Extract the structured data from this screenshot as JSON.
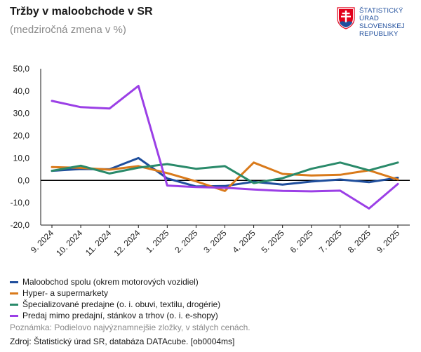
{
  "header": {
    "title": "Tržby v maloobchode v SR",
    "subtitle": "(medziročná zmena v %)"
  },
  "logo": {
    "lines": [
      "ŠTATISTICKÝ",
      "ÚRAD",
      "SLOVENSKEJ",
      "REPUBLIKY"
    ],
    "colors": {
      "red": "#e2001a",
      "blue": "#1f4e9c",
      "white": "#ffffff"
    }
  },
  "chart_data": {
    "type": "line",
    "title": "Tržby v maloobchode v SR",
    "subtitle": "(medziročná zmena v %)",
    "categories": [
      "9. 2024",
      "10. 2024",
      "11. 2024",
      "12. 2024",
      "1. 2025",
      "2. 2025",
      "3. 2025",
      "4. 2025",
      "5. 2025",
      "6. 2025",
      "7. 2025",
      "8. 2025",
      "9. 2025"
    ],
    "ylim": [
      -20,
      50
    ],
    "yticks": [
      -20,
      -10,
      0,
      10,
      20,
      30,
      40,
      50
    ],
    "ytick_labels": [
      "-20,0",
      "-10,0",
      "0,0",
      "10,0",
      "20,0",
      "30,0",
      "40,0",
      "50,0"
    ],
    "grid": false,
    "legend_position": "bottom",
    "series": [
      {
        "name": "Maloobchod spolu (okrem motorových vozidiel)",
        "color": "#1f4e9c",
        "values": [
          4.3,
          5.1,
          5.0,
          10.0,
          0.9,
          -2.7,
          -2.5,
          -0.6,
          -1.9,
          -0.5,
          0.4,
          -0.8,
          1.2
        ]
      },
      {
        "name": "Hyper- a supermarkety",
        "color": "#d97a1b",
        "values": [
          6.0,
          5.6,
          4.8,
          6.4,
          3.3,
          -0.4,
          -4.7,
          8.0,
          2.9,
          2.2,
          2.5,
          4.5,
          0.4
        ]
      },
      {
        "name": "Špecializované predajne (o. i. obuvi, textilu, drogérie)",
        "color": "#2a8a6a",
        "values": [
          4.3,
          6.6,
          3.1,
          5.7,
          7.3,
          5.2,
          6.4,
          -1.2,
          1.0,
          5.2,
          8.0,
          4.5,
          8.0
        ]
      },
      {
        "name": "Predaj mimo predajní, stánkov a trhov (o. i. e-shopy)",
        "color": "#9b3fe6",
        "values": [
          35.6,
          32.8,
          32.2,
          42.3,
          -2.3,
          -3.0,
          -3.3,
          -4.1,
          -4.7,
          -4.9,
          -4.6,
          -12.6,
          -1.6
        ]
      }
    ]
  },
  "footer": {
    "note": "Poznámka: Podielovo najvýznamnejšie zložky, v stálych cenách.",
    "source": "Zdroj: Štatistický úrad SR, databáza DATAcube. [ob0004ms]"
  }
}
